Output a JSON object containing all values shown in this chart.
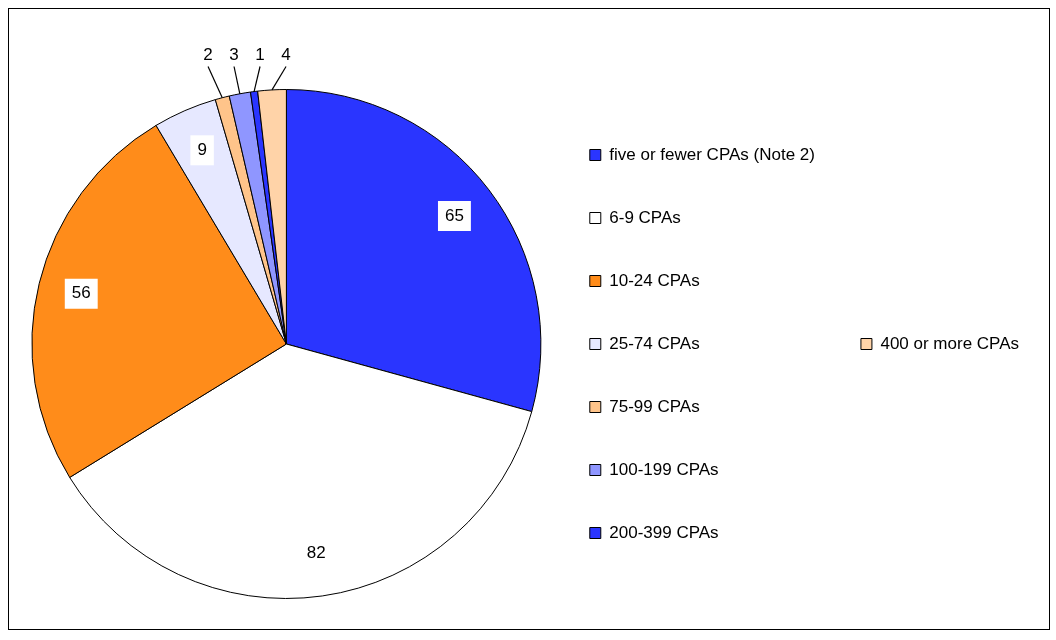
{
  "chart_data": {
    "type": "pie",
    "categories": [
      "five or fewer CPAs (Note 2)",
      "6-9 CPAs",
      "10-24 CPAs",
      "25-74 CPAs",
      "75-99 CPAs",
      "100-199 CPAs",
      "200-399 CPAs",
      "400 or more CPAs"
    ],
    "values": [
      65,
      82,
      56,
      9,
      2,
      3,
      1,
      4
    ],
    "colors": [
      "#2a35ff",
      "#ffffff",
      "#ff8c1a",
      "#e6e8ff",
      "#ffc48a",
      "#8f96ff",
      "#2a35ff",
      "#ffd3a8"
    ],
    "data_labels": true,
    "legend": "right"
  }
}
